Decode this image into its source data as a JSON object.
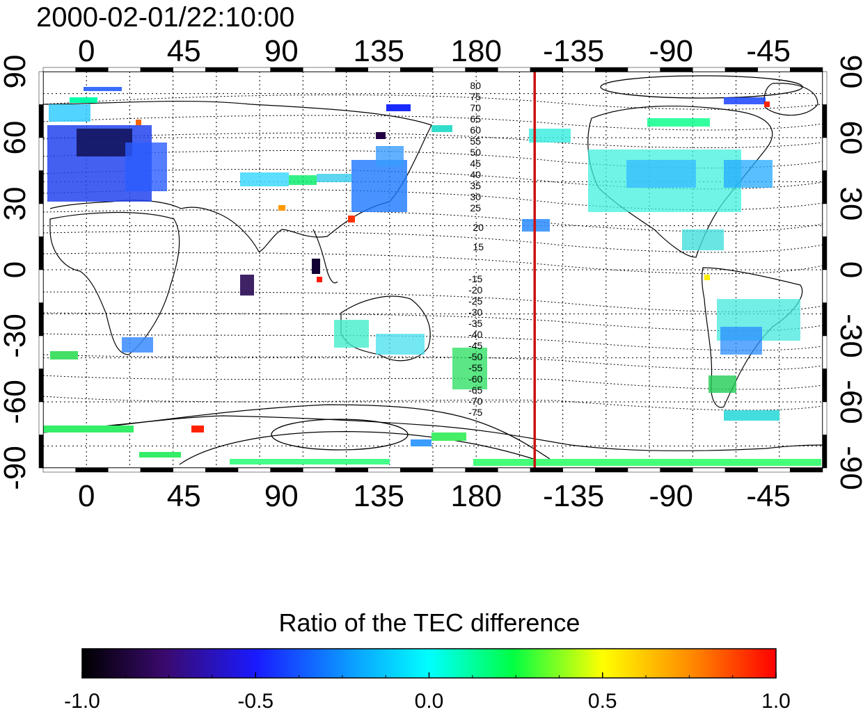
{
  "timestamp": "2000-02-01/22:10:00",
  "map": {
    "top_lon_ticks": [
      "0",
      "45",
      "90",
      "135",
      "180",
      "-135",
      "-90",
      "-45"
    ],
    "bottom_lon_ticks": [
      "0",
      "45",
      "90",
      "135",
      "180",
      "-135",
      "-90",
      "-45"
    ],
    "left_lat_ticks": [
      "90",
      "60",
      "30",
      "0",
      "-30",
      "-60",
      "-90"
    ],
    "right_lat_ticks": [
      "90",
      "60",
      "30",
      "0",
      "-30",
      "-60",
      "-90"
    ],
    "grid": "dotted",
    "projection": "cylindrical, longitude axis starting near -20",
    "marker_line": {
      "longitude": -153,
      "color": "#cc1111"
    },
    "contour_labels_north": [
      "80",
      "75",
      "70",
      "65",
      "60",
      "55",
      "50",
      "45",
      "40",
      "35",
      "30",
      "25",
      "20",
      "15"
    ],
    "contour_labels_south": [
      "-15",
      "-20",
      "-25",
      "-30",
      "-35",
      "-40",
      "-45",
      "-50",
      "-55",
      "-60",
      "-65",
      "-70",
      "-75"
    ]
  },
  "colorbar": {
    "title": "Ratio of the TEC difference",
    "ticks": [
      "-1.0",
      "-0.5",
      "0.0",
      "0.5",
      "1.0"
    ],
    "range": [
      -1.0,
      1.0
    ],
    "palette": [
      "#000000",
      "#3a0a6e",
      "#1a1aff",
      "#00ffff",
      "#00ff44",
      "#ffff00",
      "#ff8800",
      "#ff0000"
    ]
  }
}
